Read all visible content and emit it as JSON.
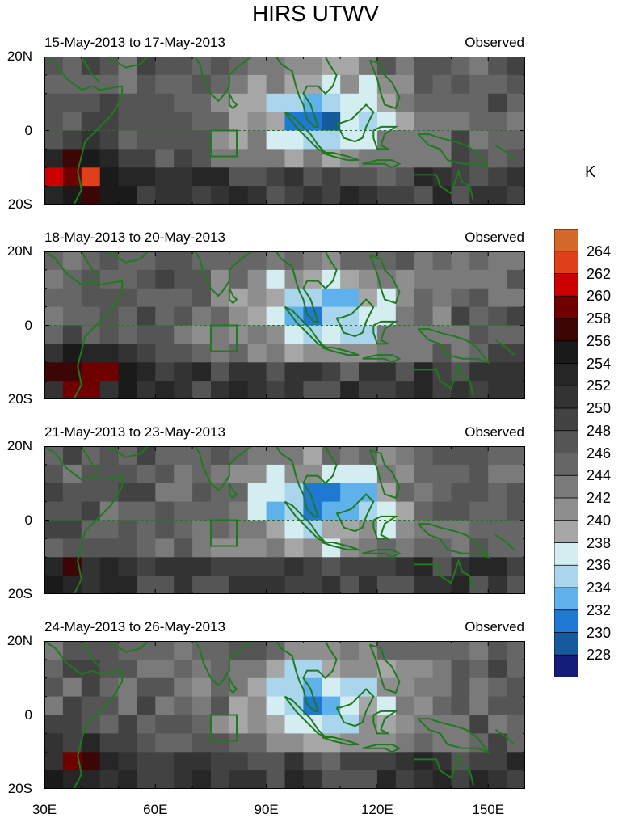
{
  "title": "HIRS UTWV",
  "units": "K",
  "panels": [
    {
      "label": "15-May-2013 to 17-May-2013",
      "tag": "Observed",
      "seed": 1
    },
    {
      "label": "18-May-2013 to 20-May-2013",
      "tag": "Observed",
      "seed": 2
    },
    {
      "label": "21-May-2013 to 23-May-2013",
      "tag": "Observed",
      "seed": 3
    },
    {
      "label": "24-May-2013 to 26-May-2013",
      "tag": "Observed",
      "seed": 4
    }
  ],
  "lat_labels": [
    "20N",
    "0",
    "20S"
  ],
  "lon_labels": [
    "30E",
    "60E",
    "90E",
    "120E",
    "150E"
  ],
  "extent": {
    "lon": [
      30,
      160
    ],
    "lat": [
      -20,
      20
    ]
  },
  "box": {
    "lon": [
      75,
      82
    ],
    "lat": [
      -7,
      0
    ]
  },
  "colorbar": {
    "labels": [
      "264",
      "262",
      "260",
      "258",
      "256",
      "254",
      "252",
      "250",
      "248",
      "246",
      "244",
      "242",
      "240",
      "238",
      "236",
      "234",
      "232",
      "230",
      "228"
    ],
    "colors": [
      "#d4692a",
      "#e0401a",
      "#cc0000",
      "#6e0000",
      "#3d0606",
      "#1a1a1a",
      "#262626",
      "#333333",
      "#424242",
      "#555555",
      "#666666",
      "#7a7a7a",
      "#8e8e8e",
      "#a6a6a6",
      "#d3edf0",
      "#a9d6ec",
      "#5eb1ea",
      "#1f78d1",
      "#155a9a",
      "#141d7a"
    ]
  },
  "coast_color": "#1f7a1f"
}
